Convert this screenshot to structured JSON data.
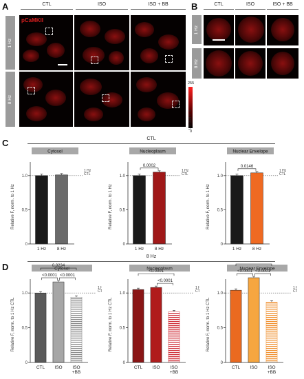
{
  "panel_letters": {
    "a": "A",
    "b": "B",
    "c": "C",
    "d": "D"
  },
  "panel_a": {
    "col_headers": [
      "CTL",
      "ISO",
      "ISO + BB"
    ],
    "row_labels": [
      "1 Hz",
      "8 Hz"
    ],
    "stain_label": "pCaMKII",
    "colorbar": {
      "max": "255",
      "min": "0",
      "label": "F > 650 nm"
    }
  },
  "panel_b": {
    "col_headers": [
      "CTL",
      "ISO",
      "ISO + BB"
    ],
    "row_labels": [
      "1 Hz",
      "8 Hz"
    ]
  },
  "panel_c": {
    "header": "CTL"
  },
  "panel_d": {
    "header": "8 Hz"
  },
  "chart_data": [
    {
      "panel": "C",
      "type": "bar",
      "title": "Cytosol",
      "ylabel": "Relative F, norm. to 1 Hz",
      "ylim": [
        0,
        1.25
      ],
      "yticks": [
        "0",
        "0.5",
        "1.0"
      ],
      "ref_label": [
        "1 Hz",
        "CTL"
      ],
      "categories": [
        "1 Hz",
        "8 Hz"
      ],
      "values": [
        1.0,
        1.01
      ],
      "colors": [
        "#1a1a1a",
        "#6a6a6a"
      ],
      "pvalues": []
    },
    {
      "panel": "C",
      "type": "bar",
      "title": "Nucleoplasm",
      "ylabel": "Relative F, norm. to 1 Hz",
      "ylim": [
        0,
        1.25
      ],
      "yticks": [
        "0",
        "0.5",
        "1.0"
      ],
      "ref_label": [
        "1 Hz",
        "CTL"
      ],
      "categories": [
        "1 Hz",
        "8 Hz"
      ],
      "values": [
        1.0,
        1.05
      ],
      "colors": [
        "#1a1a1a",
        "#a01818"
      ],
      "pvalues": [
        {
          "text": "0.0002",
          "from": 0,
          "to": 1
        }
      ]
    },
    {
      "panel": "C",
      "type": "bar",
      "title": "Nuclear Envelope",
      "ylabel": "Relative F, norm. to 1 Hz",
      "ylim": [
        0,
        1.25
      ],
      "yticks": [
        "0",
        "0.5",
        "1.0"
      ],
      "ref_label": [
        "1 Hz",
        "CTL"
      ],
      "categories": [
        "1 Hz",
        "8 Hz"
      ],
      "values": [
        1.0,
        1.04
      ],
      "colors": [
        "#1a1a1a",
        "#ef6a22"
      ],
      "pvalues": [
        {
          "text": "0.0146",
          "from": 0,
          "to": 1
        }
      ]
    },
    {
      "panel": "D",
      "type": "bar",
      "title": "Cytosol",
      "ylabel": "Relative F, norm. to 1 Hz CTL",
      "ylim": [
        0,
        1.25
      ],
      "yticks": [
        "0",
        "0.5",
        "1.0"
      ],
      "ref_label": [
        "1 Hz",
        "CTL"
      ],
      "categories": [
        "CTL",
        "ISO",
        "ISO +BB"
      ],
      "values": [
        1.0,
        1.16,
        0.94
      ],
      "colors": [
        "#5a5a5a",
        "#a6a6a6",
        "stripe:#8a8a8a"
      ],
      "pvalues": [
        {
          "text": "0.0234",
          "from": 0,
          "to": 2
        },
        {
          "text": "<0.0001",
          "from": 0,
          "to": 1
        },
        {
          "text": "<0.0001",
          "from": 1,
          "to": 2
        }
      ]
    },
    {
      "panel": "D",
      "type": "bar",
      "title": "Nucleoplasm",
      "ylabel": "Relative F, norm. to 1 Hz CTL",
      "ylim": [
        0,
        1.25
      ],
      "yticks": [
        "0",
        "0.5",
        "1.0"
      ],
      "ref_label": [
        "1 Hz",
        "CTL"
      ],
      "categories": [
        "CTL",
        "ISO",
        "ISO +BB"
      ],
      "values": [
        1.05,
        1.08,
        0.73
      ],
      "colors": [
        "#8a1515",
        "#b01c1c",
        "stripe:#d0303a"
      ],
      "pvalues": [
        {
          "text": "<0.0001",
          "from": 0,
          "to": 2
        },
        {
          "text": "<0.0001",
          "from": 1,
          "to": 2
        }
      ]
    },
    {
      "panel": "D",
      "type": "bar",
      "title": "Nuclear Envelope",
      "ylabel": "Relative F, norm. to 1 Hz CTL",
      "ylim": [
        0,
        1.25
      ],
      "yticks": [
        "0",
        "0.5",
        "1.0"
      ],
      "ref_label": [
        "1 Hz",
        "CTL"
      ],
      "categories": [
        "CTL",
        "ISO",
        "ISO +BB"
      ],
      "values": [
        1.04,
        1.22,
        0.87
      ],
      "colors": [
        "#ea6a20",
        "#f6a640",
        "stripe:#f09030"
      ],
      "pvalues": [
        {
          "text": "<0.0001",
          "from": 0,
          "to": 2
        },
        {
          "text": "<0.0001",
          "from": 0,
          "to": 1
        },
        {
          "text": "<0.0001",
          "from": 1,
          "to": 2
        }
      ]
    }
  ]
}
